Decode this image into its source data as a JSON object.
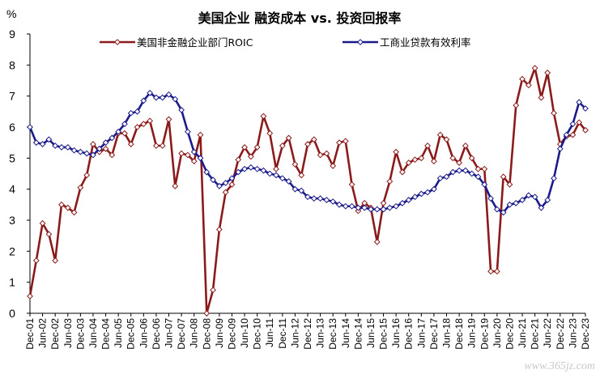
{
  "chart_data": {
    "type": "line",
    "title": "美国企业 融资成本 vs. 投资回报率",
    "ylabel": "%",
    "ylim": [
      0,
      9
    ],
    "yticks": [
      "0",
      "1",
      "2",
      "3",
      "4",
      "5",
      "6",
      "7",
      "8",
      "9"
    ],
    "xlabel": "",
    "x": [
      "Dec-01",
      "Mar-02",
      "Jun-02",
      "Sep-02",
      "Dec-02",
      "Mar-03",
      "Jun-03",
      "Sep-03",
      "Dec-03",
      "Mar-04",
      "Jun-04",
      "Sep-04",
      "Dec-04",
      "Mar-05",
      "Jun-05",
      "Sep-05",
      "Dec-05",
      "Mar-06",
      "Jun-06",
      "Sep-06",
      "Dec-06",
      "Mar-07",
      "Jun-07",
      "Sep-07",
      "Dec-07",
      "Mar-08",
      "Jun-08",
      "Sep-08",
      "Dec-08",
      "Mar-09",
      "Jun-09",
      "Sep-09",
      "Dec-09",
      "Mar-10",
      "Jun-10",
      "Sep-10",
      "Dec-10",
      "Mar-11",
      "Jun-11",
      "Sep-11",
      "Dec-11",
      "Mar-12",
      "Jun-12",
      "Sep-12",
      "Dec-12",
      "Mar-13",
      "Jun-13",
      "Sep-13",
      "Dec-13",
      "Mar-14",
      "Jun-14",
      "Sep-14",
      "Dec-14",
      "Mar-15",
      "Jun-15",
      "Sep-15",
      "Dec-15",
      "Mar-16",
      "Jun-16",
      "Sep-16",
      "Dec-16",
      "Mar-17",
      "Jun-17",
      "Sep-17",
      "Dec-17",
      "Mar-18",
      "Jun-18",
      "Sep-18",
      "Dec-18",
      "Mar-19",
      "Jun-19",
      "Sep-19",
      "Dec-19",
      "Mar-20",
      "Jun-20",
      "Sep-20",
      "Dec-20",
      "Mar-21",
      "Jun-21",
      "Sep-21",
      "Dec-21",
      "Mar-22",
      "Jun-22",
      "Sep-22",
      "Dec-22",
      "Mar-23",
      "Jun-23",
      "Sep-23",
      "Dec-23"
    ],
    "xtick_labels": [
      "Dec-01",
      "Jun-02",
      "Dec-02",
      "Jun-03",
      "Dec-03",
      "Jun-04",
      "Dec-04",
      "Jun-05",
      "Dec-05",
      "Jun-06",
      "Dec-06",
      "Jun-07",
      "Dec-07",
      "Jun-08",
      "Dec-08",
      "Jun-09",
      "Dec-09",
      "Jun-10",
      "Dec-10",
      "Jun-11",
      "Dec-11",
      "Jun-12",
      "Dec-12",
      "Jun-13",
      "Dec-13",
      "Jun-14",
      "Dec-14",
      "Jun-15",
      "Dec-15",
      "Jun-16",
      "Dec-16",
      "Jun-17",
      "Dec-17",
      "Jun-18",
      "Dec-18",
      "Jun-19",
      "Dec-19",
      "Jun-20",
      "Dec-20",
      "Jun-21",
      "Dec-21",
      "Jun-22",
      "Dec-22",
      "Jun-23",
      "Dec-23"
    ],
    "legend_position": "top",
    "grid": false,
    "series": [
      {
        "name": "美国非金融企业部门ROIC",
        "color": "#8b1a1a",
        "marker": "diamond",
        "values": [
          0.55,
          1.7,
          2.9,
          2.55,
          1.7,
          3.5,
          3.4,
          3.25,
          4.05,
          4.45,
          5.45,
          5.2,
          5.3,
          5.1,
          5.8,
          5.8,
          5.45,
          6.0,
          6.1,
          6.2,
          5.4,
          5.4,
          6.25,
          4.1,
          5.15,
          5.1,
          4.9,
          5.75,
          -0.3,
          0.75,
          2.7,
          3.9,
          4.15,
          4.95,
          5.35,
          5.05,
          5.35,
          6.35,
          5.8,
          4.65,
          5.4,
          5.65,
          4.8,
          4.45,
          5.45,
          5.6,
          5.1,
          5.15,
          4.75,
          5.5,
          5.55,
          4.15,
          3.3,
          3.55,
          3.4,
          2.3,
          3.55,
          4.25,
          5.2,
          4.55,
          4.85,
          4.95,
          5.0,
          5.4,
          4.9,
          5.75,
          5.6,
          5.0,
          4.85,
          5.4,
          5.0,
          4.65,
          4.65,
          1.35,
          1.35,
          4.4,
          4.15,
          6.7,
          7.55,
          7.35,
          7.9,
          6.95,
          7.75,
          6.45,
          5.45,
          5.7,
          5.75,
          6.15,
          5.9
        ]
      },
      {
        "name": "工商业贷款有效利率",
        "color": "#1a1a8b",
        "marker": "diamond",
        "values": [
          6.0,
          5.5,
          5.45,
          5.6,
          5.4,
          5.35,
          5.35,
          5.25,
          5.2,
          5.15,
          5.1,
          5.3,
          5.5,
          5.65,
          5.85,
          6.1,
          6.45,
          6.5,
          6.85,
          7.1,
          6.95,
          6.95,
          7.05,
          6.9,
          6.55,
          5.85,
          5.2,
          5.0,
          4.55,
          4.3,
          4.1,
          4.2,
          4.35,
          4.55,
          4.65,
          4.7,
          4.65,
          4.6,
          4.5,
          4.45,
          4.35,
          4.25,
          4.0,
          3.95,
          3.75,
          3.7,
          3.7,
          3.65,
          3.6,
          3.5,
          3.45,
          3.45,
          3.4,
          3.4,
          3.35,
          3.35,
          3.35,
          3.4,
          3.45,
          3.55,
          3.65,
          3.75,
          3.85,
          3.9,
          4.0,
          4.35,
          4.4,
          4.55,
          4.6,
          4.6,
          4.5,
          4.4,
          4.15,
          3.7,
          3.35,
          3.25,
          3.5,
          3.55,
          3.65,
          3.8,
          3.75,
          3.4,
          3.65,
          4.35,
          5.3,
          5.75,
          6.1,
          6.8,
          6.6
        ]
      }
    ]
  },
  "watermark": "www.365jz.com"
}
